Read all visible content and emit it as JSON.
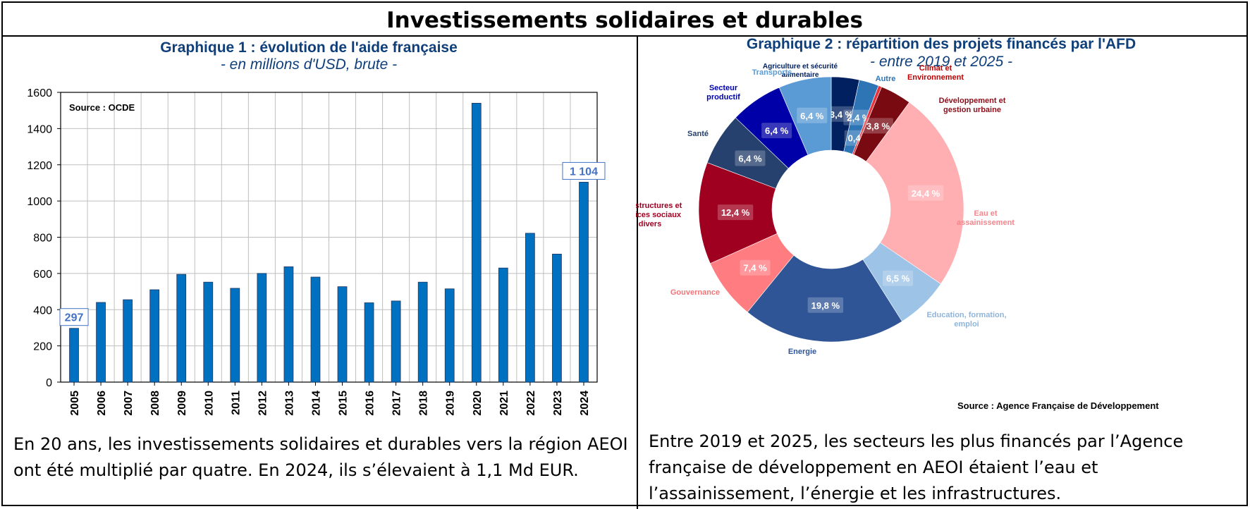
{
  "page": {
    "title": "Investissements solidaires et durables",
    "caption_left": "En 20 ans, les investissements solidaires et durables vers la région AEOI ont été multiplié par quatre. En 2024, ils s’élevaient à 1,1 Md EUR.",
    "caption_right": "Entre 2019 et 2025, les secteurs les plus financés par l’Agence française de développement en AEOI étaient l’eau et l’assainissement, l’énergie et les infrastructures."
  },
  "chart_data": [
    {
      "type": "bar",
      "title": "Graphique 1 : évolution de l'aide française",
      "subtitle": "- en millions d'USD, brute -",
      "source": "Source : OCDE",
      "categories": [
        "2005",
        "2006",
        "2007",
        "2008",
        "2009",
        "2010",
        "2011",
        "2012",
        "2013",
        "2014",
        "2015",
        "2016",
        "2017",
        "2018",
        "2019",
        "2020",
        "2021",
        "2022",
        "2023",
        "2024"
      ],
      "values": [
        297,
        440,
        455,
        510,
        595,
        552,
        518,
        600,
        637,
        580,
        527,
        438,
        448,
        552,
        515,
        1540,
        630,
        822,
        707,
        1104
      ],
      "ylim": [
        0,
        1600
      ],
      "yticks": [
        0,
        200,
        400,
        600,
        800,
        1000,
        1200,
        1400,
        1600
      ],
      "grid": true,
      "bar_color": "#0070C0",
      "data_labels": [
        {
          "category": "2005",
          "text": "297"
        },
        {
          "category": "2024",
          "text": "1 104"
        }
      ]
    },
    {
      "type": "pie",
      "title": "Graphique 2 : répartition  des projets financés par l'AFD",
      "subtitle": "- entre 2019 et 2025 -",
      "source": "Source : Agence Française de Développement",
      "donut": true,
      "slices": [
        {
          "label": "Agriculture et sécurité alimentaire",
          "value": 3.4,
          "value_label": "3,4 %",
          "color": "#002060",
          "label_color": "#002060"
        },
        {
          "label": "Autre",
          "value": 2.4,
          "value_label": "2,4 %",
          "color": "#2E75B6",
          "label_color": "#2E75B6"
        },
        {
          "label": "Climat et Environnement",
          "value": 0.4,
          "value_label": "0,4 %",
          "color": "#E8323C",
          "label_color": "#C00000"
        },
        {
          "label": "Développement et gestion urbaine",
          "value": 3.8,
          "value_label": "3,8 %",
          "color": "#7A0A12",
          "label_color": "#8B0E1A"
        },
        {
          "label": "Eau et assainissement",
          "value": 24.4,
          "value_label": "24,4 %",
          "color": "#FFAEB1",
          "label_color": "#F4868C"
        },
        {
          "label": "Education, formation, emploi",
          "value": 6.5,
          "value_label": "6,5 %",
          "color": "#9DC3E6",
          "label_color": "#8FB4DA"
        },
        {
          "label": "Energie",
          "value": 19.8,
          "value_label": "19,8 %",
          "color": "#2F5597",
          "label_color": "#2F5597"
        },
        {
          "label": "Gouvernance",
          "value": 7.4,
          "value_label": "7,4 %",
          "color": "#FF7C80",
          "label_color": "#F0767A"
        },
        {
          "label": "Infrastructures et services sociaux divers",
          "value": 12.4,
          "value_label": "12,4 %",
          "color": "#A00020",
          "label_color": "#A00020"
        },
        {
          "label": "Santé",
          "value": 6.4,
          "value_label": "6,4 %",
          "color": "#26416E",
          "label_color": "#26416E"
        },
        {
          "label": "Secteur productif",
          "value": 6.4,
          "value_label": "6,4 %",
          "color": "#0000A8",
          "label_color": "#0000A8"
        },
        {
          "label": "Transports",
          "value": 6.4,
          "value_label": "6,4 %",
          "color": "#5B9BD5",
          "label_color": "#5B9BD5"
        }
      ]
    }
  ]
}
